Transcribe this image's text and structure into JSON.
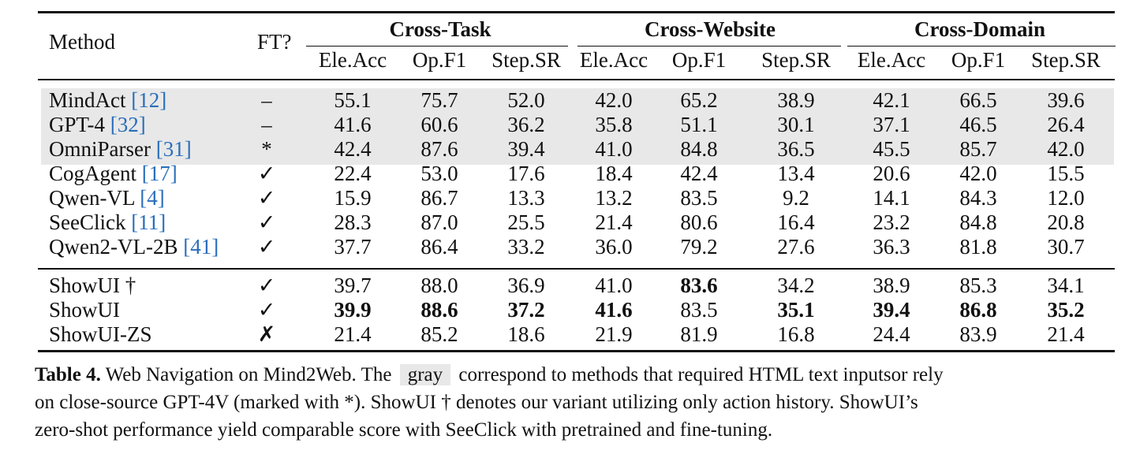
{
  "table": {
    "header": {
      "method": "Method",
      "ft": "FT?",
      "groups": [
        "Cross-Task",
        "Cross-Website",
        "Cross-Domain"
      ],
      "metrics": [
        "Ele.Acc",
        "Op.F1",
        "Step.SR",
        "Ele.Acc",
        "Op.F1",
        "Step.SR",
        "Ele.Acc",
        "Op.F1",
        "Step.SR"
      ]
    },
    "rows": [
      {
        "name": "MindAct ",
        "cite": "[12]",
        "ft": "–",
        "gray": true,
        "values": [
          "55.1",
          "75.7",
          "52.0",
          "42.0",
          "65.2",
          "38.9",
          "42.1",
          "66.5",
          "39.6"
        ],
        "bold": []
      },
      {
        "name": "GPT-4 ",
        "cite": "[32]",
        "ft": "–",
        "gray": true,
        "values": [
          "41.6",
          "60.6",
          "36.2",
          "35.8",
          "51.1",
          "30.1",
          "37.1",
          "46.5",
          "26.4"
        ],
        "bold": []
      },
      {
        "name": "OmniParser ",
        "cite": "[31]",
        "ft": "*",
        "gray": true,
        "values": [
          "42.4",
          "87.6",
          "39.4",
          "41.0",
          "84.8",
          "36.5",
          "45.5",
          "85.7",
          "42.0"
        ],
        "bold": []
      },
      {
        "name": "CogAgent ",
        "cite": "[17]",
        "ft": "✓",
        "gray": false,
        "values": [
          "22.4",
          "53.0",
          "17.6",
          "18.4",
          "42.4",
          "13.4",
          "20.6",
          "42.0",
          "15.5"
        ],
        "bold": []
      },
      {
        "name": "Qwen-VL ",
        "cite": "[4]",
        "ft": "✓",
        "gray": false,
        "values": [
          "15.9",
          "86.7",
          "13.3",
          "13.2",
          "83.5",
          "9.2",
          "14.1",
          "84.3",
          "12.0"
        ],
        "bold": []
      },
      {
        "name": "SeeClick ",
        "cite": "[11]",
        "ft": "✓",
        "gray": false,
        "values": [
          "28.3",
          "87.0",
          "25.5",
          "21.4",
          "80.6",
          "16.4",
          "23.2",
          "84.8",
          "20.8"
        ],
        "bold": []
      },
      {
        "name": "Qwen2-VL-2B ",
        "cite": "[41]",
        "ft": "✓",
        "gray": false,
        "values": [
          "37.7",
          "86.4",
          "33.2",
          "36.0",
          "79.2",
          "27.6",
          "36.3",
          "81.8",
          "30.7"
        ],
        "bold": []
      },
      {
        "name": "ShowUI †",
        "cite": "",
        "ft": "✓",
        "gray": false,
        "values": [
          "39.7",
          "88.0",
          "36.9",
          "41.0",
          "83.6",
          "34.2",
          "38.9",
          "85.3",
          "34.1"
        ],
        "bold": [
          4
        ]
      },
      {
        "name": "ShowUI",
        "cite": "",
        "ft": "✓",
        "gray": false,
        "values": [
          "39.9",
          "88.6",
          "37.2",
          "41.6",
          "83.5",
          "35.1",
          "39.4",
          "86.8",
          "35.2"
        ],
        "bold": [
          0,
          1,
          2,
          3,
          5,
          6,
          7,
          8
        ]
      },
      {
        "name": "ShowUI-ZS",
        "cite": "",
        "ft": "✗",
        "gray": false,
        "values": [
          "21.4",
          "85.2",
          "18.6",
          "21.9",
          "81.9",
          "16.8",
          "24.4",
          "83.9",
          "21.4"
        ],
        "bold": []
      }
    ]
  },
  "caption": {
    "label": "Table 4.",
    "text1": " Web Navigation on Mind2Web. The ",
    "gray_word": "gray",
    "text2": " correspond to methods that required HTML text inputsor rely",
    "line2": "on close-source GPT-4V (marked with *). ShowUI † denotes our variant utilizing only action history. ShowUI’s",
    "line3": "zero-shot performance yield comparable score with SeeClick with pretrained and fine-tuning."
  }
}
